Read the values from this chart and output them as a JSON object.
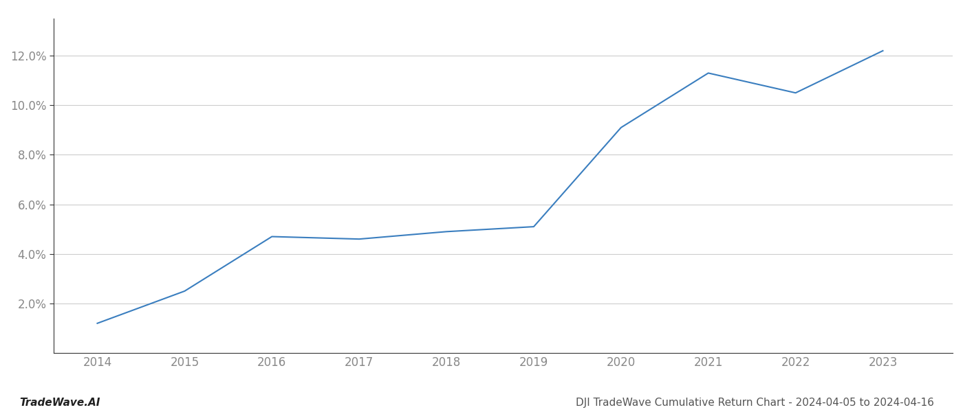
{
  "x_values": [
    2014,
    2015,
    2016,
    2017,
    2018,
    2019,
    2020,
    2021,
    2022,
    2023
  ],
  "y_values": [
    1.2,
    2.5,
    4.7,
    4.6,
    4.9,
    5.1,
    9.1,
    11.3,
    10.5,
    12.2
  ],
  "line_color": "#3a7ebf",
  "line_width": 1.5,
  "background_color": "#ffffff",
  "grid_color": "#cccccc",
  "title": "DJI TradeWave Cumulative Return Chart - 2024-04-05 to 2024-04-16",
  "watermark": "TradeWave.AI",
  "xlim": [
    2013.5,
    2023.8
  ],
  "ylim": [
    0.0,
    13.5
  ],
  "ytick_values": [
    2.0,
    4.0,
    6.0,
    8.0,
    10.0,
    12.0
  ],
  "xtick_values": [
    2014,
    2015,
    2016,
    2017,
    2018,
    2019,
    2020,
    2021,
    2022,
    2023
  ],
  "tick_label_color": "#888888",
  "spine_color": "#333333",
  "grid_spine_color": "#cccccc",
  "title_color": "#555555",
  "watermark_color": "#222222",
  "title_fontsize": 11,
  "watermark_fontsize": 11,
  "tick_fontsize": 12
}
